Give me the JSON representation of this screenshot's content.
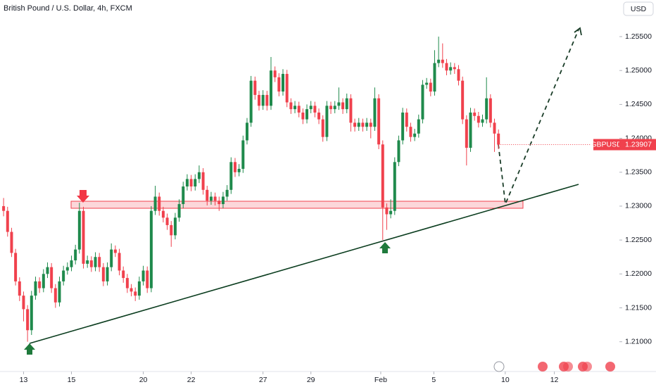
{
  "chart_data": {
    "type": "candlestick",
    "title": "British Pound / U.S. Dollar, 4h, FXCM",
    "currency": "USD",
    "symbol": "GBPUSD",
    "up_color": "#1f8a4c",
    "down_color": "#f0414d",
    "open": [
      1.23,
      1.2293,
      1.2262,
      1.2231,
      1.2189,
      1.2168,
      1.2148,
      1.2117,
      1.2168,
      1.2189,
      1.2179,
      1.22,
      1.221,
      1.2179,
      1.2158,
      1.2189,
      1.2205,
      1.221,
      1.222,
      1.2236,
      1.2293,
      1.2215,
      1.222,
      1.221,
      1.2225,
      1.221,
      1.2189,
      1.221,
      1.2236,
      1.2231,
      1.2205,
      1.2194,
      1.2179,
      1.2174,
      1.2168,
      1.2189,
      1.2205,
      1.2179,
      1.2293,
      1.2314,
      1.2293,
      1.2283,
      1.2272,
      1.2257,
      1.2283,
      1.2303,
      1.2329,
      1.234,
      1.2329,
      1.234,
      1.235,
      1.2324,
      1.2308,
      1.2314,
      1.2308,
      1.2303,
      1.2314,
      1.2324,
      1.2365,
      1.235,
      1.2355,
      1.2397,
      1.2423,
      1.2485,
      1.2464,
      1.2448,
      1.2464,
      1.2448,
      1.25,
      1.249,
      1.2469,
      1.2495,
      1.2453,
      1.2443,
      1.2448,
      1.2438,
      1.2428,
      1.2443,
      1.2448,
      1.2438,
      1.2428,
      1.2402,
      1.2448,
      1.2443,
      1.2448,
      1.2453,
      1.2443,
      1.2459,
      1.2423,
      1.2417,
      1.2423,
      1.2417,
      1.2423,
      1.2417,
      1.2459,
      1.2391,
      1.2298,
      1.2288,
      1.2293,
      1.2365,
      1.2397,
      1.2438,
      1.2417,
      1.2402,
      1.2407,
      1.2428,
      1.2479,
      1.2482,
      1.2469,
      1.2511,
      1.2516,
      1.2511,
      1.25,
      1.2505,
      1.2502,
      1.2485,
      1.2428,
      1.2386,
      1.2438,
      1.2433,
      1.2423,
      1.2428,
      1.2459,
      1.2423,
      1.2407
    ],
    "high": [
      1.2312,
      1.2299,
      1.2268,
      1.2237,
      1.2195,
      1.2174,
      1.2154,
      1.2175,
      1.2196,
      1.2195,
      1.2207,
      1.2217,
      1.2216,
      1.2185,
      1.2196,
      1.2212,
      1.2217,
      1.2227,
      1.2243,
      1.2305,
      1.2299,
      1.2227,
      1.2226,
      1.2232,
      1.2231,
      1.2216,
      1.2217,
      1.2245,
      1.2242,
      1.2237,
      1.2211,
      1.22,
      1.2185,
      1.218,
      1.2196,
      1.2212,
      1.2211,
      1.23,
      1.233,
      1.232,
      1.2299,
      1.2289,
      1.2278,
      1.229,
      1.231,
      1.2336,
      1.2347,
      1.2346,
      1.2347,
      1.236,
      1.2356,
      1.233,
      1.2321,
      1.232,
      1.2314,
      1.2321,
      1.2331,
      1.2372,
      1.2371,
      1.2362,
      1.2404,
      1.243,
      1.2492,
      1.2491,
      1.247,
      1.2471,
      1.247,
      1.252,
      1.2506,
      1.2496,
      1.2502,
      1.2501,
      1.2459,
      1.2455,
      1.2454,
      1.2444,
      1.245,
      1.2455,
      1.2454,
      1.2444,
      1.2434,
      1.2455,
      1.2454,
      1.2455,
      1.2475,
      1.2459,
      1.2466,
      1.2465,
      1.2429,
      1.243,
      1.2429,
      1.243,
      1.2429,
      1.2475,
      1.2465,
      1.2397,
      1.2304,
      1.231,
      1.2372,
      1.2404,
      1.2445,
      1.2444,
      1.2423,
      1.2414,
      1.2435,
      1.2486,
      1.2489,
      1.2488,
      1.253,
      1.255,
      1.254,
      1.2517,
      1.2512,
      1.2511,
      1.2508,
      1.2491,
      1.2434,
      1.2445,
      1.2444,
      1.2439,
      1.2435,
      1.249,
      1.2465,
      1.2429,
      1.2413
    ],
    "low": [
      1.2285,
      1.2255,
      1.2225,
      1.2183,
      1.216,
      1.213,
      1.21,
      1.211,
      1.2162,
      1.2172,
      1.2173,
      1.2194,
      1.2172,
      1.215,
      1.2152,
      1.2183,
      1.2199,
      1.2204,
      1.2214,
      1.223,
      1.2208,
      1.2209,
      1.2203,
      1.2204,
      1.2203,
      1.2182,
      1.2183,
      1.2204,
      1.2225,
      1.2198,
      1.2187,
      1.2172,
      1.2167,
      1.216,
      1.2162,
      1.2183,
      1.2172,
      1.2173,
      1.2287,
      1.2286,
      1.2276,
      1.2265,
      1.224,
      1.2251,
      1.2277,
      1.2297,
      1.2323,
      1.2322,
      1.2323,
      1.2334,
      1.2317,
      1.2301,
      1.2302,
      1.2301,
      1.2293,
      1.2297,
      1.2308,
      1.2318,
      1.2343,
      1.2344,
      1.2349,
      1.2391,
      1.2417,
      1.2457,
      1.2441,
      1.2442,
      1.2441,
      1.2442,
      1.2483,
      1.2462,
      1.2463,
      1.2446,
      1.2436,
      1.2437,
      1.2431,
      1.2421,
      1.2422,
      1.2437,
      1.2431,
      1.2421,
      1.2395,
      1.2396,
      1.2436,
      1.2437,
      1.2442,
      1.2436,
      1.2437,
      1.241,
      1.241,
      1.2411,
      1.241,
      1.2411,
      1.24,
      1.2411,
      1.2384,
      1.225,
      1.2265,
      1.2282,
      1.2287,
      1.2359,
      1.2391,
      1.241,
      1.2395,
      1.2396,
      1.2401,
      1.2422,
      1.2473,
      1.2462,
      1.2463,
      1.2505,
      1.2504,
      1.2493,
      1.2494,
      1.2495,
      1.2478,
      1.2421,
      1.236,
      1.238,
      1.2426,
      1.2416,
      1.2417,
      1.2422,
      1.2416,
      1.238,
      1.2384
    ],
    "close": [
      1.2293,
      1.2262,
      1.2231,
      1.2189,
      1.2168,
      1.2148,
      1.2117,
      1.2168,
      1.2189,
      1.2179,
      1.22,
      1.221,
      1.2179,
      1.2158,
      1.2189,
      1.2205,
      1.221,
      1.222,
      1.2236,
      1.2293,
      1.2215,
      1.222,
      1.221,
      1.2225,
      1.221,
      1.2189,
      1.221,
      1.2236,
      1.2231,
      1.2205,
      1.2194,
      1.2179,
      1.2174,
      1.2168,
      1.2189,
      1.2205,
      1.2179,
      1.2293,
      1.2314,
      1.2293,
      1.2283,
      1.2272,
      1.2257,
      1.2283,
      1.2303,
      1.2329,
      1.234,
      1.2329,
      1.234,
      1.235,
      1.2324,
      1.2308,
      1.2314,
      1.2308,
      1.2303,
      1.2314,
      1.2324,
      1.2365,
      1.235,
      1.2355,
      1.2397,
      1.2423,
      1.2485,
      1.2464,
      1.2448,
      1.2464,
      1.2448,
      1.25,
      1.249,
      1.2469,
      1.2495,
      1.2453,
      1.2443,
      1.2448,
      1.2438,
      1.2428,
      1.2443,
      1.2448,
      1.2438,
      1.2428,
      1.2402,
      1.2448,
      1.2443,
      1.2448,
      1.2453,
      1.2443,
      1.2459,
      1.2423,
      1.2417,
      1.2423,
      1.2417,
      1.2423,
      1.2417,
      1.2459,
      1.2391,
      1.2298,
      1.2288,
      1.2293,
      1.2365,
      1.2397,
      1.2438,
      1.2417,
      1.2402,
      1.2407,
      1.2428,
      1.2479,
      1.2482,
      1.2469,
      1.2511,
      1.2516,
      1.2511,
      1.25,
      1.2505,
      1.2502,
      1.2485,
      1.2428,
      1.2386,
      1.2438,
      1.2433,
      1.2423,
      1.2428,
      1.2459,
      1.2423,
      1.2407,
      1.23907
    ],
    "ylim": [
      1.2054,
      1.2604
    ],
    "yticks": [
      {
        "value": 1.21,
        "label": "1.21000"
      },
      {
        "value": 1.215,
        "label": "1.21500"
      },
      {
        "value": 1.22,
        "label": "1.22000"
      },
      {
        "value": 1.225,
        "label": "1.22500"
      },
      {
        "value": 1.23,
        "label": "1.23000"
      },
      {
        "value": 1.235,
        "label": "1.23500"
      },
      {
        "value": 1.24,
        "label": "1.24000"
      },
      {
        "value": 1.245,
        "label": "1.24500"
      },
      {
        "value": 1.25,
        "label": "1.25000"
      },
      {
        "value": 1.255,
        "label": "1.25500"
      }
    ],
    "xlim": [
      -0.9,
      154.3
    ],
    "xticks": [
      {
        "value": 5,
        "label": "13"
      },
      {
        "value": 17,
        "label": "15"
      },
      {
        "value": 35,
        "label": "20"
      },
      {
        "value": 47,
        "label": "22"
      },
      {
        "value": 65,
        "label": "27"
      },
      {
        "value": 77,
        "label": "29"
      },
      {
        "value": 94.5,
        "label": "Feb"
      },
      {
        "value": 107.8,
        "label": "5"
      },
      {
        "value": 125.7,
        "label": "10"
      },
      {
        "value": 138,
        "label": "12"
      }
    ],
    "grid": false
  }
}
